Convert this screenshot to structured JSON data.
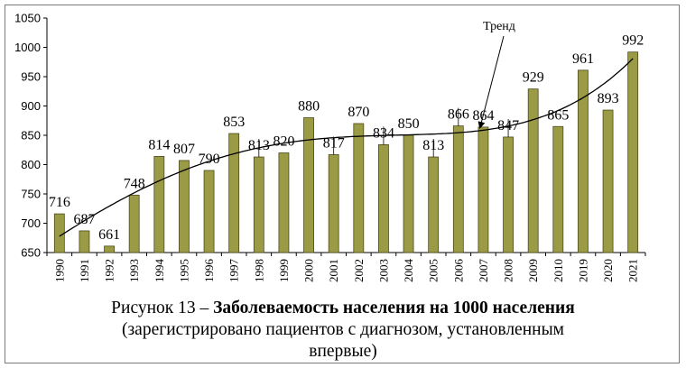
{
  "chart_data": {
    "type": "bar",
    "categories": [
      "1990",
      "1991",
      "1992",
      "1993",
      "1994",
      "1995",
      "1996",
      "1997",
      "1998",
      "1999",
      "2000",
      "2001",
      "2002",
      "2003",
      "2004",
      "2005",
      "2006",
      "2007",
      "2008",
      "2009",
      "2010",
      "2019",
      "2020",
      "2021"
    ],
    "values": [
      716,
      687,
      661,
      748,
      814,
      807,
      790,
      853,
      813,
      820,
      880,
      817,
      870,
      834,
      850,
      813,
      866,
      864,
      847,
      929,
      865,
      961,
      893,
      992
    ],
    "ylim": [
      650,
      1050
    ],
    "yticks": [
      650,
      700,
      750,
      800,
      850,
      900,
      950,
      1000,
      1050
    ],
    "xlabel": "",
    "ylabel": "",
    "trend_label": "Тренд",
    "bar_color": "#9b9b45",
    "bar_edge_color": "#4a4a1a",
    "trend_color": "#000000"
  },
  "caption": {
    "prefix": "Рисунок 13 – ",
    "title_bold": "Заболеваемость населения на 1000 населения",
    "line2": "(зарегистрировано пациентов с диагнозом, установленным",
    "line3": "впервые)"
  }
}
